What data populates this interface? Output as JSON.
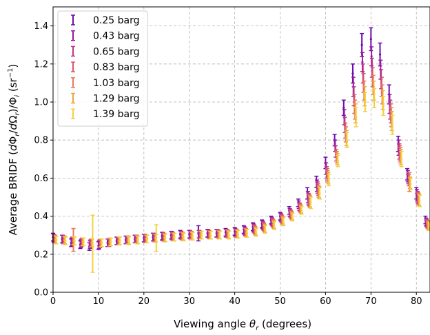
{
  "chart_data": {
    "type": "scatter",
    "title": "",
    "xlabel": "Viewing angle θ_r (degrees)",
    "xlabel_parts": [
      "Viewing angle ",
      "θ",
      "r",
      " (degrees)"
    ],
    "ylabel": "Average BRIDF (dΦ_r/dΩ_r)/Φ_i (sr^-1)",
    "ylabel_parts": [
      "Average BRIDF (",
      "d",
      "Φ",
      "r",
      "/",
      "d",
      "Ω",
      "r",
      ")/Φ",
      "i",
      " (sr",
      "−1",
      ")"
    ],
    "xlim": [
      0,
      83
    ],
    "ylim": [
      0,
      1.5
    ],
    "xticks": [
      0,
      10,
      20,
      30,
      40,
      50,
      60,
      70,
      80
    ],
    "xtick_labels": [
      "0",
      "10",
      "20",
      "30",
      "40",
      "50",
      "60",
      "70",
      "80"
    ],
    "yticks": [
      0,
      0.2,
      0.4,
      0.6,
      0.8,
      1.0,
      1.2,
      1.4
    ],
    "ytick_labels": [
      "0.0",
      "0.2",
      "0.4",
      "0.6",
      "0.8",
      "1.0",
      "1.2",
      "1.4"
    ],
    "grid": true,
    "legend_position": "top-left",
    "x": [
      0,
      2,
      4,
      6,
      8,
      10,
      12,
      14,
      16,
      18,
      20,
      22,
      24,
      26,
      28,
      30,
      32,
      34,
      36,
      38,
      40,
      42,
      44,
      46,
      48,
      50,
      52,
      54,
      56,
      58,
      60,
      62,
      64,
      66,
      68,
      70,
      72,
      74,
      76,
      78,
      80,
      82
    ],
    "series": [
      {
        "name": "0.25 barg",
        "color": "#6a0dad",
        "y": [
          0.29,
          0.28,
          0.26,
          0.25,
          0.24,
          0.245,
          0.26,
          0.27,
          0.275,
          0.28,
          0.285,
          0.29,
          0.295,
          0.3,
          0.305,
          0.305,
          0.31,
          0.31,
          0.31,
          0.315,
          0.32,
          0.33,
          0.345,
          0.36,
          0.38,
          0.4,
          0.43,
          0.47,
          0.52,
          0.58,
          0.68,
          0.8,
          0.97,
          1.15,
          1.3,
          1.33,
          1.25,
          1.04,
          0.78,
          0.62,
          0.52,
          0.38
        ],
        "err": [
          0.02,
          0.02,
          0.02,
          0.02,
          0.02,
          0.02,
          0.02,
          0.02,
          0.02,
          0.02,
          0.02,
          0.02,
          0.02,
          0.02,
          0.02,
          0.02,
          0.04,
          0.02,
          0.02,
          0.02,
          0.02,
          0.02,
          0.02,
          0.02,
          0.02,
          0.02,
          0.02,
          0.02,
          0.03,
          0.03,
          0.03,
          0.03,
          0.04,
          0.05,
          0.06,
          0.06,
          0.06,
          0.05,
          0.04,
          0.03,
          0.03,
          0.02
        ]
      },
      {
        "name": "0.43 barg",
        "color": "#9c179e",
        "y": [
          0.285,
          0.28,
          0.265,
          0.255,
          0.25,
          0.25,
          0.26,
          0.27,
          0.275,
          0.28,
          0.285,
          0.29,
          0.295,
          0.3,
          0.3,
          0.305,
          0.305,
          0.31,
          0.31,
          0.31,
          0.315,
          0.325,
          0.34,
          0.355,
          0.375,
          0.395,
          0.42,
          0.46,
          0.5,
          0.56,
          0.65,
          0.77,
          0.92,
          1.08,
          1.21,
          1.24,
          1.17,
          0.99,
          0.76,
          0.61,
          0.51,
          0.37
        ],
        "err": [
          0.02,
          0.02,
          0.02,
          0.02,
          0.02,
          0.02,
          0.02,
          0.02,
          0.02,
          0.02,
          0.02,
          0.02,
          0.02,
          0.02,
          0.02,
          0.02,
          0.02,
          0.02,
          0.02,
          0.02,
          0.02,
          0.02,
          0.02,
          0.02,
          0.02,
          0.02,
          0.02,
          0.02,
          0.03,
          0.03,
          0.03,
          0.03,
          0.04,
          0.05,
          0.05,
          0.05,
          0.05,
          0.05,
          0.04,
          0.03,
          0.03,
          0.02
        ]
      },
      {
        "name": "0.65 barg",
        "color": "#bd3786",
        "y": [
          0.28,
          0.275,
          0.27,
          0.26,
          0.255,
          0.255,
          0.26,
          0.27,
          0.275,
          0.28,
          0.285,
          0.29,
          0.29,
          0.295,
          0.3,
          0.3,
          0.305,
          0.305,
          0.31,
          0.31,
          0.31,
          0.32,
          0.335,
          0.35,
          0.37,
          0.39,
          0.415,
          0.45,
          0.49,
          0.55,
          0.63,
          0.74,
          0.88,
          1.03,
          1.15,
          1.18,
          1.12,
          0.96,
          0.74,
          0.6,
          0.5,
          0.365
        ],
        "err": [
          0.02,
          0.02,
          0.02,
          0.02,
          0.02,
          0.02,
          0.02,
          0.02,
          0.02,
          0.02,
          0.02,
          0.02,
          0.02,
          0.02,
          0.02,
          0.02,
          0.02,
          0.02,
          0.02,
          0.02,
          0.02,
          0.02,
          0.02,
          0.02,
          0.02,
          0.02,
          0.02,
          0.02,
          0.03,
          0.03,
          0.03,
          0.03,
          0.04,
          0.05,
          0.05,
          0.05,
          0.05,
          0.05,
          0.04,
          0.03,
          0.03,
          0.02
        ]
      },
      {
        "name": "0.83 barg",
        "color": "#d8576b",
        "y": [
          0.28,
          0.275,
          0.27,
          0.265,
          0.26,
          0.255,
          0.26,
          0.27,
          0.275,
          0.28,
          0.28,
          0.285,
          0.29,
          0.295,
          0.295,
          0.3,
          0.3,
          0.305,
          0.305,
          0.31,
          0.31,
          0.315,
          0.33,
          0.345,
          0.365,
          0.385,
          0.41,
          0.445,
          0.485,
          0.54,
          0.62,
          0.72,
          0.85,
          0.99,
          1.1,
          1.13,
          1.08,
          0.94,
          0.73,
          0.59,
          0.495,
          0.36
        ],
        "err": [
          0.02,
          0.02,
          0.02,
          0.02,
          0.02,
          0.02,
          0.02,
          0.02,
          0.02,
          0.02,
          0.02,
          0.02,
          0.02,
          0.02,
          0.02,
          0.02,
          0.02,
          0.02,
          0.02,
          0.02,
          0.02,
          0.02,
          0.02,
          0.02,
          0.02,
          0.02,
          0.02,
          0.02,
          0.03,
          0.03,
          0.03,
          0.03,
          0.04,
          0.05,
          0.05,
          0.05,
          0.05,
          0.05,
          0.04,
          0.03,
          0.03,
          0.02
        ]
      },
      {
        "name": "1.03 barg",
        "color": "#ed7953",
        "y": [
          0.28,
          0.275,
          0.275,
          0.265,
          0.26,
          0.26,
          0.265,
          0.27,
          0.275,
          0.28,
          0.28,
          0.285,
          0.29,
          0.29,
          0.295,
          0.3,
          0.3,
          0.3,
          0.305,
          0.305,
          0.31,
          0.315,
          0.325,
          0.34,
          0.36,
          0.38,
          0.405,
          0.44,
          0.48,
          0.53,
          0.61,
          0.71,
          0.83,
          0.96,
          1.06,
          1.09,
          1.04,
          0.92,
          0.72,
          0.58,
          0.49,
          0.355
        ],
        "err": [
          0.02,
          0.02,
          0.06,
          0.02,
          0.02,
          0.02,
          0.02,
          0.02,
          0.02,
          0.02,
          0.02,
          0.02,
          0.02,
          0.02,
          0.02,
          0.02,
          0.02,
          0.02,
          0.02,
          0.02,
          0.02,
          0.02,
          0.02,
          0.02,
          0.02,
          0.02,
          0.02,
          0.02,
          0.03,
          0.03,
          0.03,
          0.03,
          0.04,
          0.05,
          0.05,
          0.05,
          0.05,
          0.05,
          0.04,
          0.05,
          0.03,
          0.02
        ]
      },
      {
        "name": "1.29 barg",
        "color": "#f0a33b",
        "y": [
          0.275,
          0.275,
          0.27,
          0.265,
          0.26,
          0.26,
          0.265,
          0.27,
          0.275,
          0.275,
          0.28,
          0.285,
          0.285,
          0.29,
          0.295,
          0.295,
          0.3,
          0.3,
          0.3,
          0.305,
          0.305,
          0.31,
          0.32,
          0.335,
          0.355,
          0.375,
          0.4,
          0.435,
          0.475,
          0.525,
          0.6,
          0.7,
          0.81,
          0.94,
          1.03,
          1.06,
          1.01,
          0.9,
          0.71,
          0.575,
          0.485,
          0.35
        ],
        "err": [
          0.02,
          0.02,
          0.02,
          0.02,
          0.02,
          0.02,
          0.02,
          0.02,
          0.02,
          0.02,
          0.02,
          0.02,
          0.02,
          0.02,
          0.02,
          0.02,
          0.02,
          0.02,
          0.02,
          0.02,
          0.02,
          0.02,
          0.02,
          0.02,
          0.02,
          0.02,
          0.02,
          0.02,
          0.03,
          0.03,
          0.03,
          0.03,
          0.04,
          0.05,
          0.05,
          0.05,
          0.05,
          0.05,
          0.04,
          0.03,
          0.03,
          0.02
        ]
      },
      {
        "name": "1.39 barg",
        "color": "#f4d03f",
        "y": [
          0.275,
          0.27,
          0.27,
          0.265,
          0.255,
          0.26,
          0.265,
          0.27,
          0.27,
          0.275,
          0.28,
          0.285,
          0.285,
          0.29,
          0.29,
          0.295,
          0.3,
          0.3,
          0.3,
          0.3,
          0.305,
          0.31,
          0.315,
          0.33,
          0.35,
          0.37,
          0.395,
          0.43,
          0.47,
          0.52,
          0.59,
          0.69,
          0.8,
          0.92,
          1.0,
          1.02,
          0.98,
          0.88,
          0.7,
          0.57,
          0.48,
          0.345
        ],
        "err": [
          0.02,
          0.02,
          0.02,
          0.02,
          0.15,
          0.02,
          0.02,
          0.02,
          0.02,
          0.02,
          0.02,
          0.07,
          0.02,
          0.02,
          0.02,
          0.02,
          0.02,
          0.02,
          0.02,
          0.02,
          0.02,
          0.02,
          0.02,
          0.02,
          0.02,
          0.02,
          0.02,
          0.02,
          0.03,
          0.03,
          0.03,
          0.03,
          0.04,
          0.05,
          0.05,
          0.05,
          0.05,
          0.05,
          0.04,
          0.03,
          0.03,
          0.02
        ]
      }
    ]
  }
}
